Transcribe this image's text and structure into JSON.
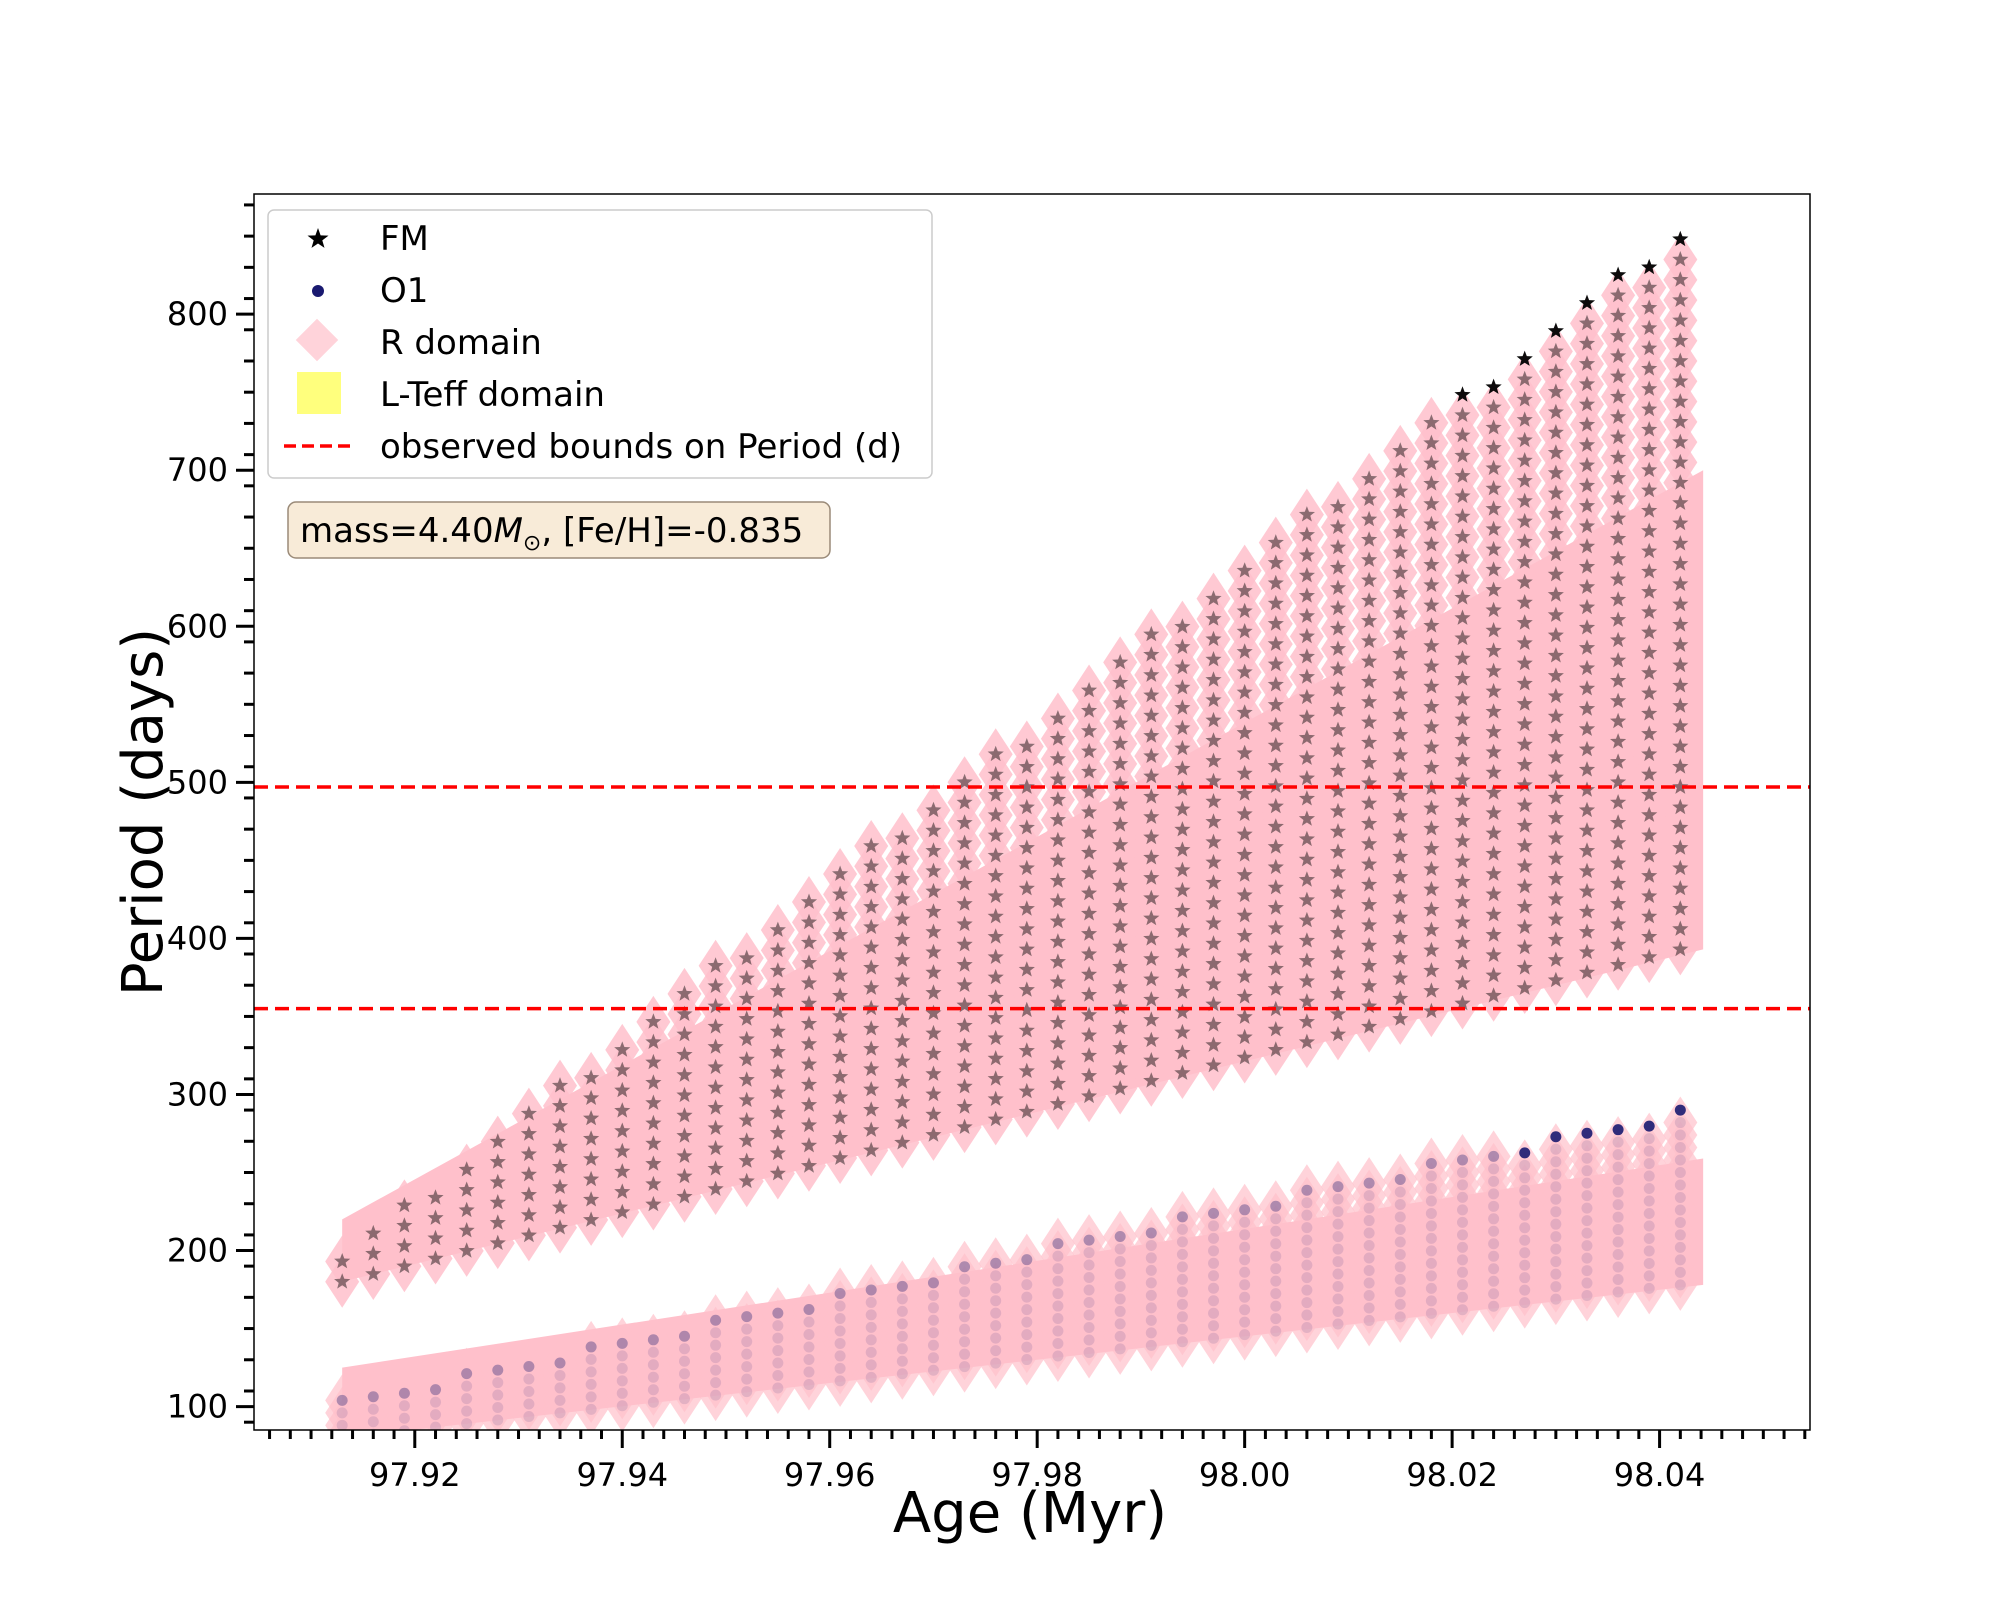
{
  "chart_data": {
    "type": "scatter",
    "xlabel": "Age (Myr)",
    "ylabel": "Period (days)",
    "xlim": [
      97.9045,
      98.0545
    ],
    "ylim": [
      85,
      877
    ],
    "x_ticks": [
      97.92,
      97.94,
      97.96,
      97.98,
      98.0,
      98.02,
      98.04
    ],
    "x_tick_labels": [
      "97.92",
      "97.94",
      "97.96",
      "97.98",
      "98.00",
      "98.02",
      "98.04"
    ],
    "y_ticks": [
      100,
      200,
      300,
      400,
      500,
      600,
      700,
      800
    ],
    "y_tick_labels": [
      "100",
      "200",
      "300",
      "400",
      "500",
      "600",
      "700",
      "800"
    ],
    "grid": false,
    "legend_position": "top-left",
    "legend": [
      {
        "label": "FM",
        "marker": "star",
        "color": "#000000"
      },
      {
        "label": "O1",
        "marker": "circle",
        "color": "#191970"
      },
      {
        "label": "R domain",
        "marker": "diamond",
        "color": "#ffc0cb"
      },
      {
        "label": "L-Teff domain",
        "marker": "square",
        "color": "#ffff66"
      },
      {
        "label": "observed bounds on Period (d)",
        "marker": "dashed-line",
        "color": "#ff0000"
      }
    ],
    "annotation": {
      "prefix": "mass=4.40",
      "symbol": "M",
      "subscript": "⊙",
      "suffix": ", [Fe/H]=-0.835"
    },
    "observed_bounds": [
      355,
      497
    ],
    "x_start": 97.913,
    "x_step": 0.003,
    "x_count": 44,
    "fm_top": {
      "start": 200,
      "end": 856
    },
    "fm_bottom": {
      "start": 180,
      "end": 393
    },
    "o1_top": {
      "start": 105,
      "end": 291
    },
    "o1_bottom": {
      "start": 80,
      "end": 178
    },
    "fm_pink_top": {
      "start": 220,
      "end": 700
    },
    "colors": {
      "pink": "#ffc0cb",
      "fm_star": "#000000",
      "o1_dot": "#191970",
      "bound_line": "#ff0000"
    }
  }
}
